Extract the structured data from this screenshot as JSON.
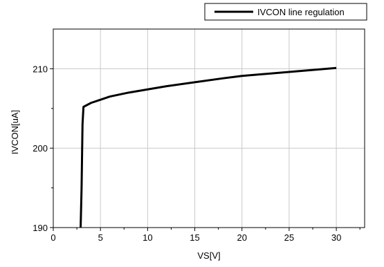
{
  "chart_data": {
    "type": "line",
    "title": "",
    "xlabel": "VS[V]",
    "ylabel": "IVCON[uA]",
    "xlim": [
      0,
      33
    ],
    "ylim": [
      190,
      215
    ],
    "xticks": [
      0,
      5,
      10,
      15,
      20,
      25,
      30
    ],
    "yticks": [
      190,
      200,
      210
    ],
    "grid": true,
    "legend_position": "top-right",
    "series": [
      {
        "name": "IVCON line regulation",
        "color": "#000000",
        "x": [
          2.9,
          3.0,
          3.1,
          3.2,
          4,
          5,
          6,
          8,
          10,
          12,
          15,
          18,
          20,
          25,
          30
        ],
        "y": [
          190.0,
          195.0,
          203.0,
          205.2,
          205.7,
          206.1,
          206.5,
          207.0,
          207.4,
          207.8,
          208.3,
          208.8,
          209.1,
          209.6,
          210.1
        ]
      }
    ]
  }
}
